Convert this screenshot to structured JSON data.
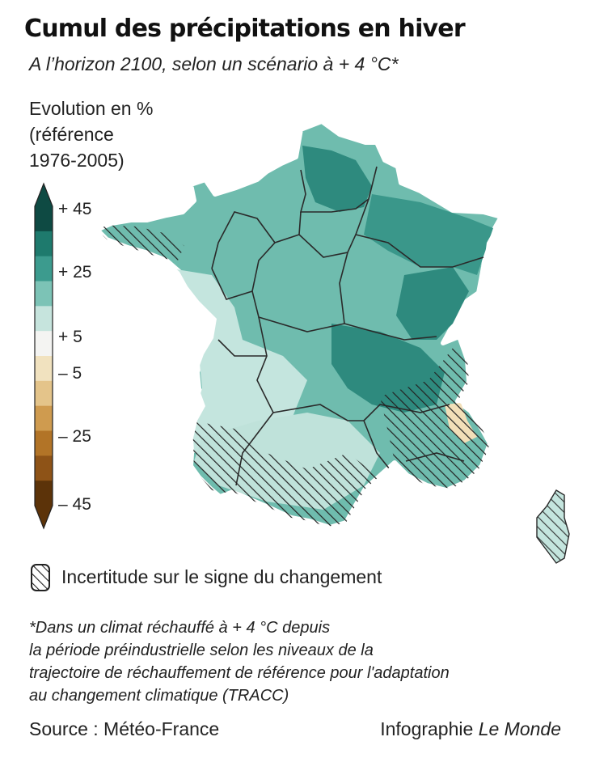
{
  "title": "Cumul des précipitations en hiver",
  "subtitle": "A l’horizon 2100, selon un scénario à + 4 °C*",
  "legend": {
    "title_lines": [
      "Evolution en %",
      "(référence",
      "1976-2005)"
    ],
    "ticks": [
      "+ 45",
      "+ 25",
      "+ 5",
      "– 5",
      "– 25",
      "– 45"
    ],
    "colors": [
      "#0e4a43",
      "#1e7a6d",
      "#3c9b8e",
      "#7cc3b6",
      "#c6e4dd",
      "#f4f4f2",
      "#f1e2bf",
      "#e4c48a",
      "#cf9b4f",
      "#b27427",
      "#8e5317",
      "#5c3309"
    ],
    "hatch_label": "Incertitude sur le signe du changement"
  },
  "map": {
    "subject": "France métropolitaine et Corse",
    "dominant_signal": "hausse des précipitations hivernales",
    "colors": {
      "strong": "#2e8a7e",
      "medium": "#6fbcae",
      "light": "#c4e5de",
      "dry": "#f2dfb8"
    }
  },
  "footnote_lines": [
    "*Dans un climat réchauffé à + 4 °C depuis",
    "la période préindustrielle selon les niveaux de la",
    "trajectoire de réchauffement de référence pour l'adaptation",
    "au changement climatique (TRACC)"
  ],
  "source": "Source : Météo-France",
  "credit_prefix": "Infographie ",
  "credit_name": "Le Monde"
}
